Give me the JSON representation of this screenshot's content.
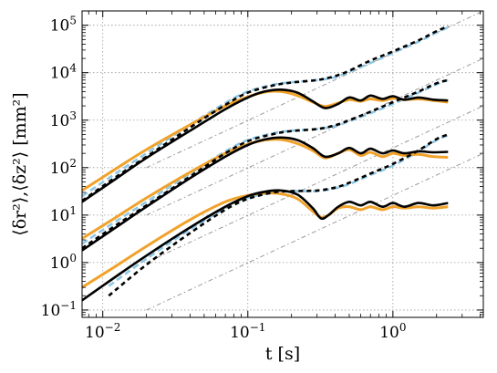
{
  "chart_data": {
    "type": "line",
    "xlabel": "t [s]",
    "ylabel": "⟨δr²⟩,⟨δz²⟩ [mm²]",
    "xscale": "log",
    "yscale": "log",
    "xlim": [
      0.0072,
      4.2
    ],
    "ylim": [
      0.07,
      200000
    ],
    "grid": true,
    "x_ticks": [
      {
        "value": 0.01,
        "base": "10",
        "exp": "−2"
      },
      {
        "value": 0.1,
        "base": "10",
        "exp": "−1"
      },
      {
        "value": 1,
        "base": "10",
        "exp": "0"
      }
    ],
    "y_ticks": [
      {
        "value": 0.1,
        "base": "10",
        "exp": "−1"
      },
      {
        "value": 1,
        "base": "10",
        "exp": "0"
      },
      {
        "value": 10,
        "base": "10",
        "exp": "1"
      },
      {
        "value": 100,
        "base": "10",
        "exp": "2"
      },
      {
        "value": 1000,
        "base": "10",
        "exp": "3"
      },
      {
        "value": 10000,
        "base": "10",
        "exp": "4"
      },
      {
        "value": 100000,
        "base": "10",
        "exp": "5"
      }
    ],
    "colors": {
      "orange": "#f0a22a",
      "black": "#000000",
      "lightblue": "#8ec8e6",
      "reference": "#9a9a9a"
    },
    "series": [
      {
        "style": "orange-solid",
        "x": [
          0.0072,
          0.012,
          0.02,
          0.04,
          0.07,
          0.1,
          0.13,
          0.17,
          0.22,
          0.28,
          0.34,
          0.42,
          0.5,
          0.6,
          0.7,
          0.85,
          1.0,
          1.2,
          1.5,
          1.9,
          2.4
        ],
        "y": [
          33,
          90,
          240,
          800,
          2000,
          3100,
          3900,
          4000,
          3300,
          2400,
          1950,
          2300,
          2700,
          2500,
          2800,
          2600,
          2900,
          2700,
          2800,
          2600,
          2400
        ]
      },
      {
        "style": "black-solid",
        "x": [
          0.0072,
          0.012,
          0.02,
          0.04,
          0.07,
          0.1,
          0.13,
          0.17,
          0.22,
          0.28,
          0.34,
          0.42,
          0.5,
          0.6,
          0.7,
          0.85,
          1.0,
          1.2,
          1.5,
          1.9,
          2.4
        ],
        "y": [
          19,
          55,
          160,
          600,
          1700,
          3000,
          4000,
          4400,
          3800,
          2500,
          1800,
          2200,
          3000,
          2600,
          3300,
          2800,
          3200,
          2700,
          3000,
          2700,
          2600
        ]
      },
      {
        "style": "lightblue-dashed",
        "x": [
          0.0072,
          0.012,
          0.02,
          0.04,
          0.07,
          0.1,
          0.15,
          0.2,
          0.3,
          0.4,
          0.5,
          0.7,
          1.0,
          1.5,
          2.0,
          2.4
        ],
        "y": [
          25,
          72,
          200,
          800,
          2300,
          4000,
          5600,
          6300,
          7000,
          8000,
          10500,
          16000,
          26000,
          45000,
          70000,
          90000
        ]
      },
      {
        "style": "black-dashed",
        "x": [
          0.0072,
          0.012,
          0.02,
          0.04,
          0.07,
          0.1,
          0.15,
          0.2,
          0.3,
          0.4,
          0.5,
          0.7,
          1.0,
          1.5,
          2.0,
          2.4
        ],
        "y": [
          20,
          60,
          170,
          700,
          2100,
          3800,
          5400,
          6200,
          7000,
          8500,
          11000,
          18000,
          28000,
          48000,
          75000,
          95000
        ]
      },
      {
        "style": "orange-solid",
        "x": [
          0.0072,
          0.012,
          0.02,
          0.04,
          0.07,
          0.1,
          0.13,
          0.17,
          0.22,
          0.28,
          0.34,
          0.42,
          0.5,
          0.6,
          0.7,
          0.85,
          1.0,
          1.2,
          1.5,
          1.9,
          2.4
        ],
        "y": [
          3.2,
          8.5,
          23,
          80,
          200,
          310,
          380,
          390,
          320,
          230,
          160,
          200,
          240,
          180,
          210,
          170,
          200,
          180,
          190,
          170,
          165
        ]
      },
      {
        "style": "black-solid",
        "x": [
          0.0072,
          0.012,
          0.02,
          0.04,
          0.07,
          0.1,
          0.13,
          0.17,
          0.22,
          0.28,
          0.34,
          0.42,
          0.5,
          0.6,
          0.7,
          0.85,
          1.0,
          1.2,
          1.5,
          1.9,
          2.4
        ],
        "y": [
          1.8,
          5.2,
          15,
          60,
          170,
          300,
          390,
          430,
          380,
          260,
          170,
          200,
          260,
          200,
          250,
          200,
          230,
          200,
          220,
          210,
          215
        ]
      },
      {
        "style": "lightblue-dashed",
        "x": [
          0.0072,
          0.012,
          0.02,
          0.04,
          0.07,
          0.1,
          0.15,
          0.2,
          0.3,
          0.4,
          0.5,
          0.7,
          1.0,
          1.5,
          2.0,
          2.4
        ],
        "y": [
          2.5,
          7,
          19,
          75,
          220,
          380,
          530,
          600,
          650,
          750,
          950,
          1400,
          2200,
          3800,
          5700,
          7000
        ]
      },
      {
        "style": "black-dashed",
        "x": [
          0.0072,
          0.012,
          0.02,
          0.04,
          0.07,
          0.1,
          0.15,
          0.2,
          0.3,
          0.4,
          0.5,
          0.7,
          1.0,
          1.5,
          2.0,
          2.4
        ],
        "y": [
          2,
          5.8,
          16,
          65,
          200,
          360,
          510,
          590,
          650,
          780,
          1000,
          1500,
          2400,
          4000,
          6000,
          7000
        ]
      },
      {
        "style": "orange-solid",
        "x": [
          0.0072,
          0.012,
          0.02,
          0.04,
          0.07,
          0.1,
          0.13,
          0.17,
          0.22,
          0.28,
          0.32,
          0.36,
          0.42,
          0.5,
          0.6,
          0.7,
          0.85,
          1.0,
          1.2,
          1.5,
          1.9,
          2.4
        ],
        "y": [
          0.3,
          0.8,
          2.2,
          8,
          19,
          26,
          29,
          28,
          22,
          12,
          9,
          10,
          14,
          15,
          13,
          15,
          13,
          15,
          14,
          15,
          14,
          15
        ]
      },
      {
        "style": "black-solid",
        "x": [
          0.0072,
          0.012,
          0.02,
          0.04,
          0.07,
          0.1,
          0.13,
          0.17,
          0.22,
          0.28,
          0.32,
          0.36,
          0.42,
          0.5,
          0.6,
          0.7,
          0.85,
          1.0,
          1.2,
          1.5,
          1.9,
          2.4
        ],
        "y": [
          0.16,
          0.48,
          1.4,
          5.5,
          15,
          25,
          31,
          33,
          27,
          14,
          8.5,
          10,
          15,
          19,
          16,
          19,
          15,
          18,
          15,
          18,
          16,
          18
        ]
      },
      {
        "style": "lightblue-dashed",
        "x": [
          0.011,
          0.02,
          0.04,
          0.07,
          0.1,
          0.15,
          0.2,
          0.3,
          0.4,
          0.5,
          0.7,
          1.0,
          1.5,
          2.0,
          2.4
        ],
        "y": [
          0.32,
          1.2,
          5,
          14,
          23,
          30,
          32,
          32,
          37,
          45,
          70,
          110,
          220,
          380,
          480
        ]
      },
      {
        "style": "black-dashed",
        "x": [
          0.011,
          0.02,
          0.04,
          0.07,
          0.1,
          0.15,
          0.2,
          0.3,
          0.4,
          0.5,
          0.7,
          1.0,
          1.5,
          2.0,
          2.4
        ],
        "y": [
          0.2,
          0.9,
          4.2,
          13,
          22,
          30,
          32,
          33,
          38,
          48,
          75,
          120,
          230,
          400,
          500
        ]
      }
    ],
    "reference_lines": [
      {
        "style": "gray-dashdot",
        "x": [
          0.02,
          4.2
        ],
        "y": [
          100,
          200000
        ]
      },
      {
        "style": "gray-dashdot",
        "x": [
          0.02,
          4.2
        ],
        "y": [
          10,
          20000
        ]
      },
      {
        "style": "gray-dashdot",
        "x": [
          0.02,
          4.2
        ],
        "y": [
          1,
          2000
        ]
      },
      {
        "style": "gray-dashdot",
        "x": [
          0.02,
          4.2
        ],
        "y": [
          0.1,
          200
        ]
      }
    ]
  }
}
